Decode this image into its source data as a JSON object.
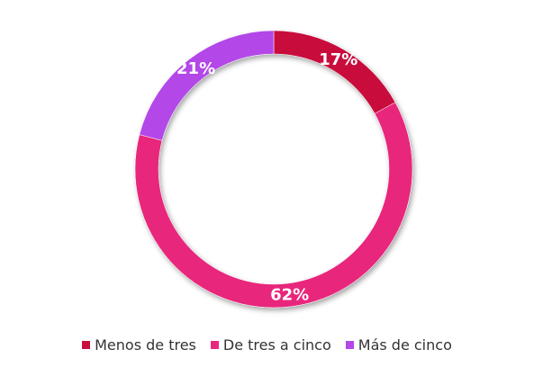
{
  "chart_data": {
    "type": "pie",
    "variant": "donut",
    "categories": [
      "Menos de tres",
      "De tres a cinco",
      "Más de cinco"
    ],
    "values": [
      17,
      62,
      21
    ],
    "labels": [
      "17%",
      "62%",
      "21%"
    ],
    "colors": [
      "#c8103e",
      "#e8287c",
      "#b347e8"
    ],
    "legend_position": "bottom"
  }
}
